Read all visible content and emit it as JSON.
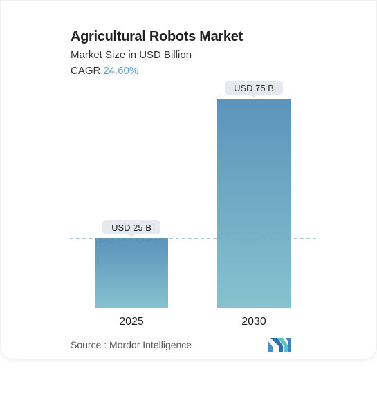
{
  "header": {
    "title": "Agricultural Robots Market",
    "subtitle": "Market Size in USD Billion",
    "cagr_label": "CAGR",
    "cagr_value": "24.60%"
  },
  "footer": {
    "source_label": "Source :",
    "source_name": "Mordor Intelligence"
  },
  "colors": {
    "bar_top": "#5b93bb",
    "bar_bottom": "#86c3cf",
    "label_bg": "#e6eaee",
    "dashed_line": "#7aa6c2",
    "accent": "#5fa3c7"
  },
  "chart_data": {
    "type": "bar",
    "title": "Agricultural Robots Market",
    "subtitle": "Market Size in USD Billion",
    "categories": [
      "2025",
      "2030"
    ],
    "values": [
      25,
      75
    ],
    "data_labels": [
      "USD 25 B",
      "USD 75 B"
    ],
    "ylim": [
      0,
      75
    ],
    "grid": false,
    "reference_line": 25
  }
}
